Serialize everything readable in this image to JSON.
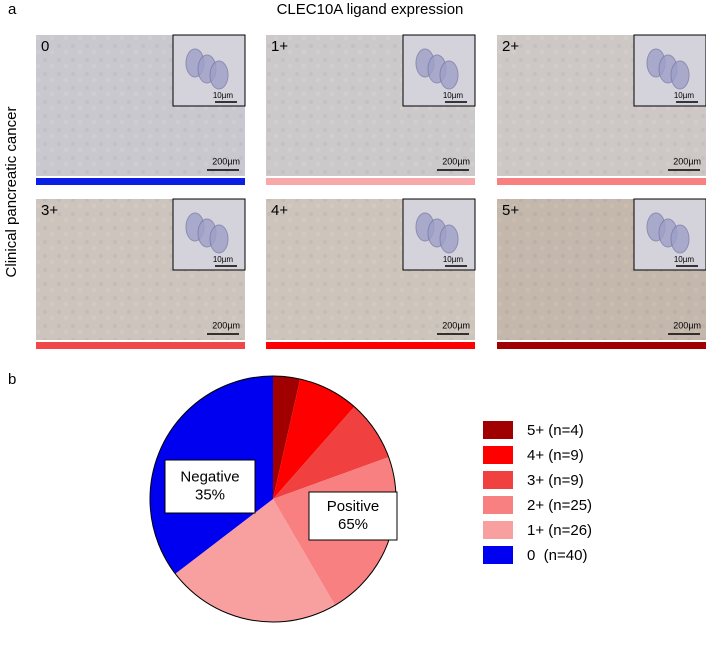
{
  "panel_a": {
    "label": "a",
    "title": "CLEC10A ligand expression",
    "ylabel": "Clinical pancreatic cancer",
    "scale_inset": "10µm",
    "scale_main": "200µm",
    "tiles": [
      {
        "score": "0",
        "bar_color": "#0a1ee6"
      },
      {
        "score": "1+",
        "bar_color": "#f8a8a8"
      },
      {
        "score": "2+",
        "bar_color": "#f88080"
      },
      {
        "score": "3+",
        "bar_color": "#f04848"
      },
      {
        "score": "4+",
        "bar_color": "#ff0000"
      },
      {
        "score": "5+",
        "bar_color": "#a00000"
      }
    ]
  },
  "chart_data": {
    "type": "pie",
    "label": "b",
    "categories": [
      "5+ (n=4)",
      "4+ (n=9)",
      "3+ (n=9)",
      "2+ (n=25)",
      "1+ (n=26)",
      "0  (n=40)"
    ],
    "values": [
      4,
      9,
      9,
      25,
      26,
      40
    ],
    "colors": [
      "#a00000",
      "#ff0000",
      "#f04040",
      "#f88080",
      "#f8a0a0",
      "#0000f0"
    ],
    "annotations": [
      {
        "text": "Negative",
        "value": 35,
        "value_label": "35%"
      },
      {
        "text": "Positive",
        "value": 65,
        "value_label": "65%"
      }
    ]
  }
}
